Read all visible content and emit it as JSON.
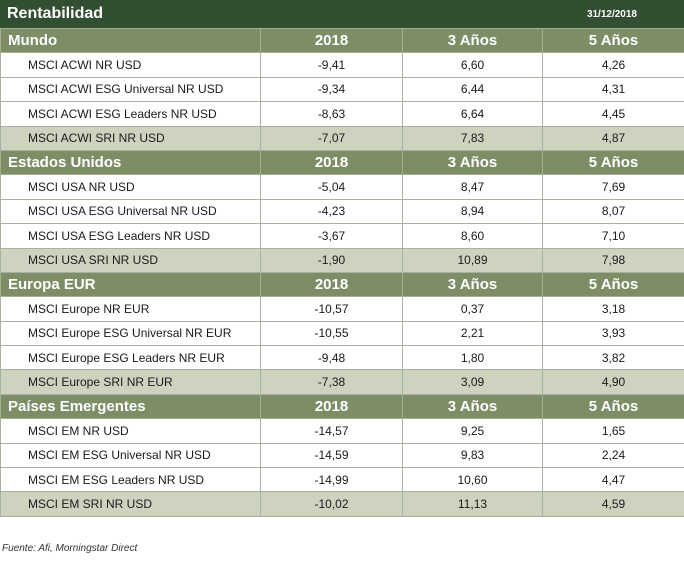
{
  "header": {
    "title": "Rentabilidad",
    "date": "31/12/2018"
  },
  "columns": [
    "2018",
    "3 Años",
    "5 Años"
  ],
  "sections": [
    {
      "name": "Mundo",
      "rows": [
        {
          "name": "MSCI ACWI NR USD",
          "v2018": "-9,41",
          "v3": "6,60",
          "v5": "4,26"
        },
        {
          "name": "MSCI ACWI ESG Universal NR USD",
          "v2018": "-9,34",
          "v3": "6,44",
          "v5": "4,31"
        },
        {
          "name": "MSCI ACWI ESG Leaders NR USD",
          "v2018": "-8,63",
          "v3": "6,64",
          "v5": "4,45"
        },
        {
          "name": "MSCI ACWI SRI NR USD",
          "v2018": "-7,07",
          "v3": "7,83",
          "v5": "4,87"
        }
      ]
    },
    {
      "name": "Estados Unidos",
      "rows": [
        {
          "name": "MSCI USA NR USD",
          "v2018": "-5,04",
          "v3": "8,47",
          "v5": "7,69"
        },
        {
          "name": "MSCI USA ESG Universal NR USD",
          "v2018": "-4,23",
          "v3": "8,94",
          "v5": "8,07"
        },
        {
          "name": "MSCI USA ESG Leaders NR USD",
          "v2018": "-3,67",
          "v3": "8,60",
          "v5": "7,10"
        },
        {
          "name": "MSCI USA SRI NR USD",
          "v2018": "-1,90",
          "v3": "10,89",
          "v5": "7,98"
        }
      ]
    },
    {
      "name": "Europa EUR",
      "rows": [
        {
          "name": "MSCI Europe NR EUR",
          "v2018": "-10,57",
          "v3": "0,37",
          "v5": "3,18"
        },
        {
          "name": "MSCI Europe ESG Universal NR EUR",
          "v2018": "-10,55",
          "v3": "2,21",
          "v5": "3,93"
        },
        {
          "name": "MSCI Europe ESG Leaders NR EUR",
          "v2018": "-9,48",
          "v3": "1,80",
          "v5": "3,82"
        },
        {
          "name": "MSCI Europe SRI NR EUR",
          "v2018": "-7,38",
          "v3": "3,09",
          "v5": "4,90"
        }
      ]
    },
    {
      "name": "Países Emergentes",
      "rows": [
        {
          "name": "MSCI EM NR USD",
          "v2018": "-14,57",
          "v3": "9,25",
          "v5": "1,65"
        },
        {
          "name": "MSCI EM ESG Universal NR USD",
          "v2018": "-14,59",
          "v3": "9,83",
          "v5": "2,24"
        },
        {
          "name": "MSCI EM ESG Leaders NR USD",
          "v2018": "-14,99",
          "v3": "10,60",
          "v5": "4,47"
        },
        {
          "name": "MSCI EM SRI NR USD",
          "v2018": "-10,02",
          "v3": "11,13",
          "v5": "4,59"
        }
      ]
    }
  ],
  "source": "Fuente: Afi, Morningstar Direct",
  "colors": {
    "title_bg": "#324f32",
    "section_bg": "#7d8e66",
    "sri_row_bg": "#cdd3bf"
  }
}
